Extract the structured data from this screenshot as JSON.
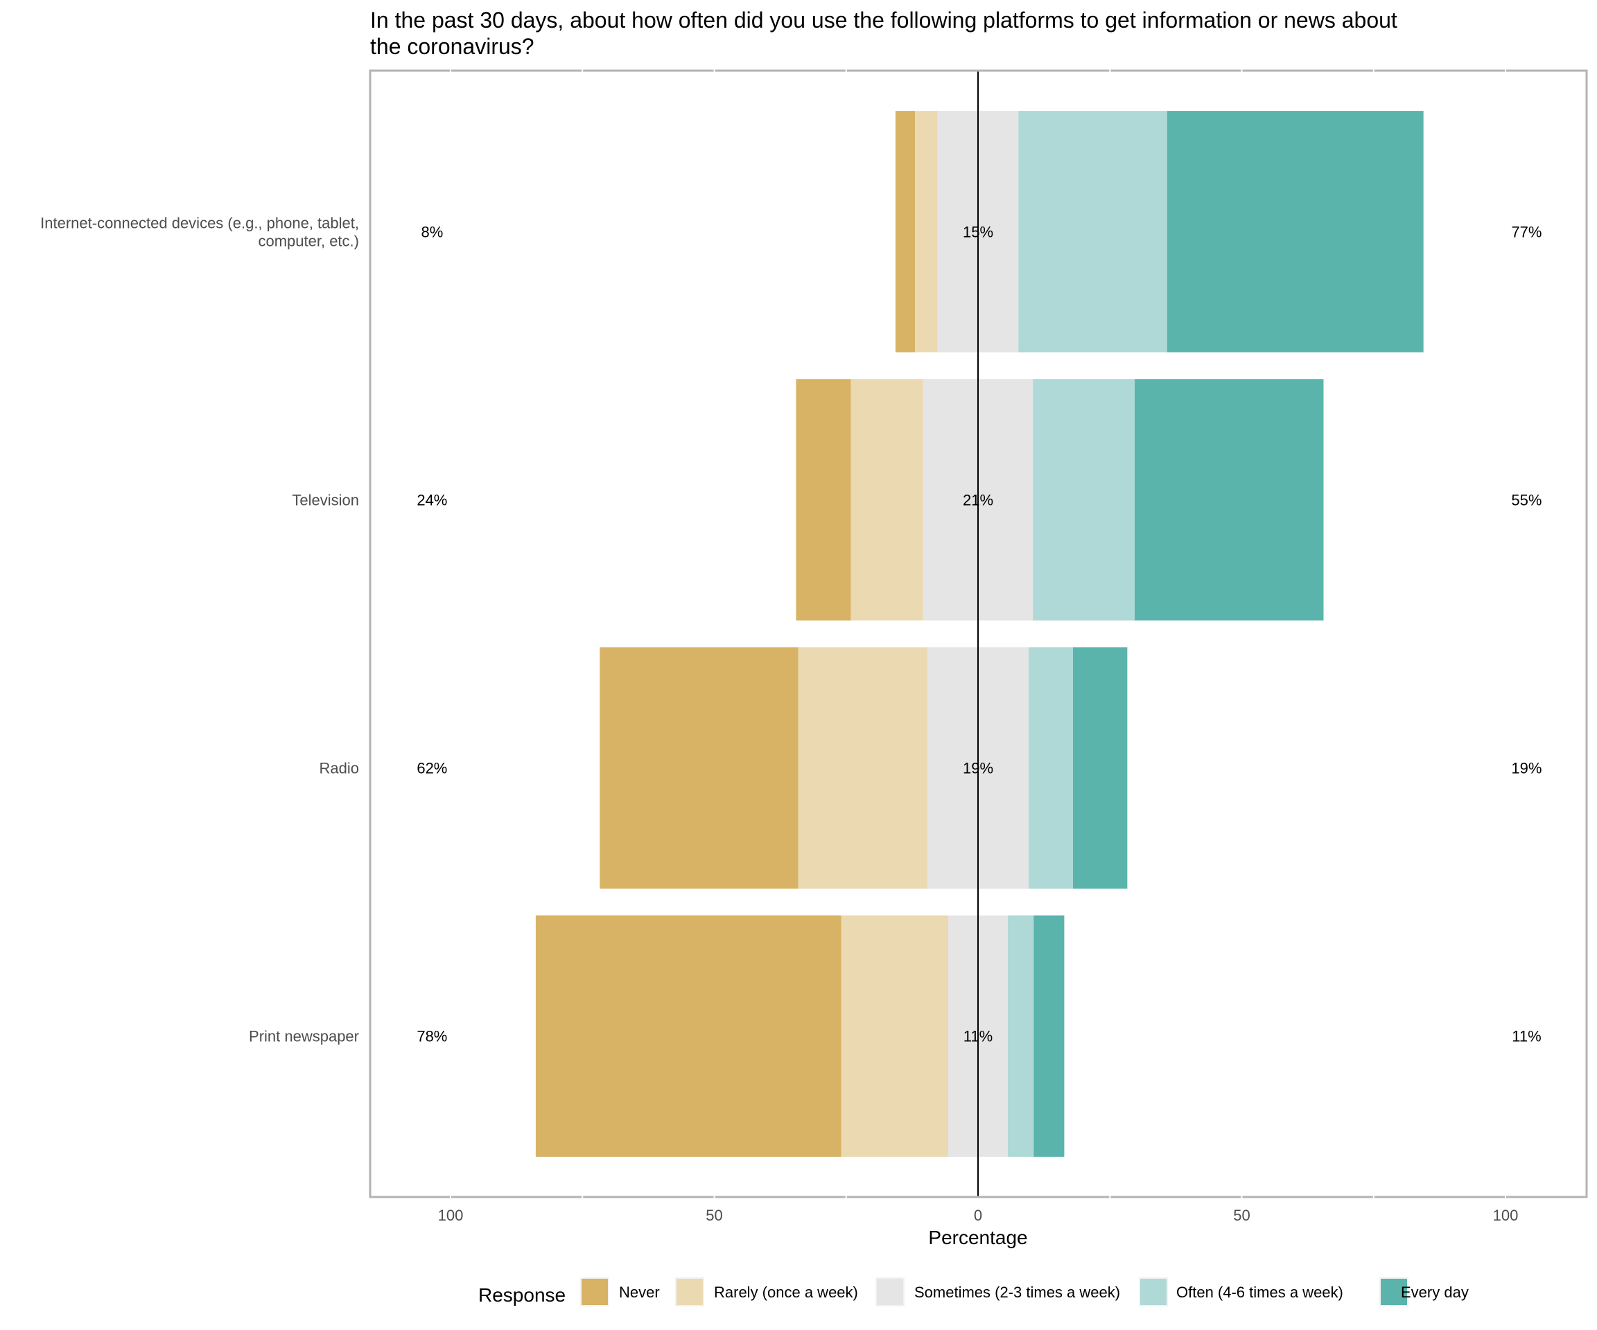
{
  "chart_data": {
    "type": "bar",
    "orientation": "horizontal-diverging",
    "title": "In the past 30 days, about how often did you use the following platforms to get information or news about the coronavirus?",
    "xlabel": "Percentage",
    "ylabel": "",
    "xlim": [
      -115,
      115
    ],
    "xticks": [
      -100,
      -50,
      0,
      50,
      100
    ],
    "xtick_labels": [
      "100",
      "50",
      "0",
      "50",
      "100"
    ],
    "grid": true,
    "legend_title": "Response",
    "legend_position": "bottom",
    "categories": [
      "Internet-connected devices (e.g., phone, tablet,\ncomputer, etc.)",
      "Television",
      "Radio",
      "Print newspaper"
    ],
    "series": [
      {
        "name": "Never",
        "color": "#D8B365",
        "values": [
          3.7,
          10.4,
          37.6,
          57.9
        ]
      },
      {
        "name": "Rarely (once a week)",
        "color": "#EBD9B2",
        "values": [
          4.3,
          13.7,
          24.5,
          20.3
        ]
      },
      {
        "name": "Sometimes (2-3 times a week)",
        "color": "#E5E5E5",
        "values": [
          15.3,
          20.8,
          19.2,
          11.3
        ]
      },
      {
        "name": "Often (4-6 times a week)",
        "color": "#AFD9D6",
        "values": [
          28.2,
          19.3,
          8.4,
          4.9
        ]
      },
      {
        "name": "Every day",
        "color": "#5AB4AC",
        "values": [
          48.6,
          35.8,
          10.3,
          5.8
        ]
      }
    ],
    "labels_left": [
      "8%",
      "24%",
      "62%",
      "78%"
    ],
    "labels_center": [
      "15%",
      "21%",
      "19%",
      "11%"
    ],
    "labels_right": [
      "77%",
      "55%",
      "19%",
      "11%"
    ]
  }
}
